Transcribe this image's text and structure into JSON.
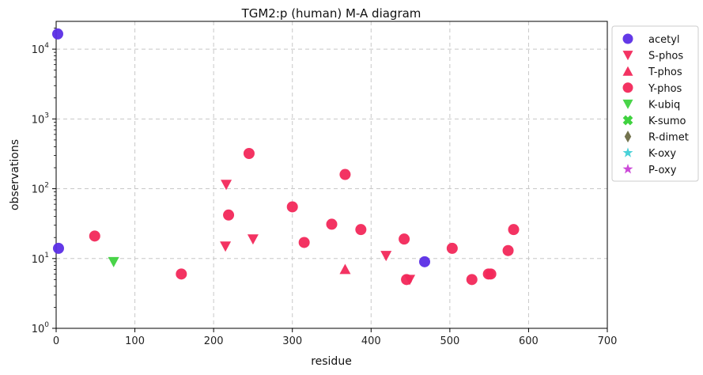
{
  "chart_data": {
    "type": "scatter",
    "title": "TGM2:p (human) M-A diagram",
    "xlabel": "residue",
    "ylabel": "observations",
    "xlim": [
      0,
      700
    ],
    "ylim": [
      1,
      25000
    ],
    "yscale": "log",
    "grid": true,
    "legend_position": "outside-right",
    "x_ticks": [
      "0",
      "100",
      "200",
      "300",
      "400",
      "500",
      "600",
      "700"
    ],
    "y_ticks": [
      {
        "base": "10",
        "exp": "0",
        "value": 1
      },
      {
        "base": "10",
        "exp": "1",
        "value": 10
      },
      {
        "base": "10",
        "exp": "2",
        "value": 100
      },
      {
        "base": "10",
        "exp": "3",
        "value": 1000
      },
      {
        "base": "10",
        "exp": "4",
        "value": 10000
      }
    ],
    "series": [
      {
        "name": "acetyl",
        "marker": "circle",
        "color": "#5b2ee6",
        "points": [
          [
            2,
            16500
          ],
          [
            3,
            14
          ],
          [
            468,
            9
          ]
        ]
      },
      {
        "name": "S-phos",
        "marker": "triangle-down",
        "color": "#f2285a",
        "points": [
          [
            216,
            115
          ],
          [
            215,
            15
          ],
          [
            250,
            19
          ],
          [
            419,
            11
          ],
          [
            449,
            5
          ]
        ]
      },
      {
        "name": "T-phos",
        "marker": "triangle-up",
        "color": "#f2285a",
        "points": [
          [
            367,
            7
          ]
        ]
      },
      {
        "name": "Y-phos",
        "marker": "circle",
        "color": "#f2285a",
        "points": [
          [
            49,
            21
          ],
          [
            159,
            6
          ],
          [
            219,
            42
          ],
          [
            245,
            320
          ],
          [
            300,
            55
          ],
          [
            315,
            17
          ],
          [
            350,
            31
          ],
          [
            367,
            160
          ],
          [
            387,
            26
          ],
          [
            442,
            19
          ],
          [
            445,
            5
          ],
          [
            503,
            14
          ],
          [
            528,
            5
          ],
          [
            549,
            6
          ],
          [
            552,
            6
          ],
          [
            574,
            13
          ],
          [
            581,
            26
          ]
        ]
      },
      {
        "name": "K-ubiq",
        "marker": "triangle-down",
        "color": "#3fd23f",
        "points": [
          [
            73,
            9
          ]
        ]
      },
      {
        "name": "K-sumo",
        "marker": "x",
        "color": "#3fd23f",
        "points": []
      },
      {
        "name": "R-dimet",
        "marker": "diamond",
        "color": "#6b6b44",
        "points": []
      },
      {
        "name": "K-oxy",
        "marker": "star",
        "color": "#3fcfd6",
        "points": []
      },
      {
        "name": "P-oxy",
        "marker": "star",
        "color": "#c93fd6",
        "points": []
      }
    ]
  }
}
